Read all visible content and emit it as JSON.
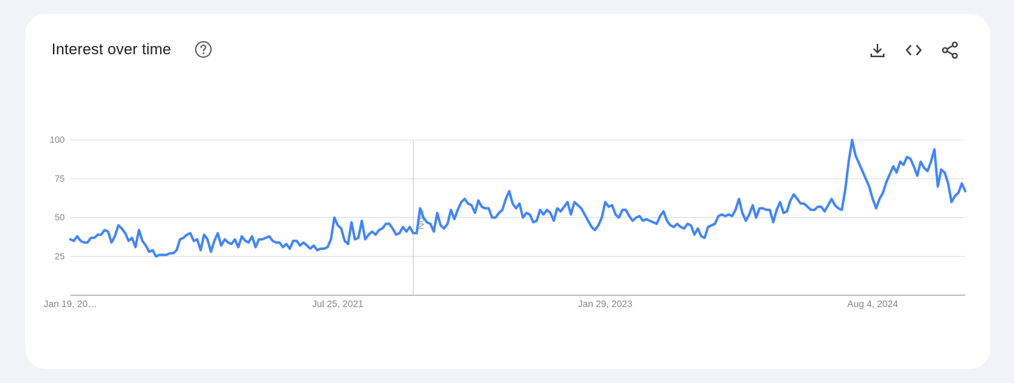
{
  "header": {
    "title": "Interest over time",
    "help_icon": "help-circle-icon",
    "actions": [
      {
        "name": "download-button",
        "icon": "download-icon",
        "label": "Download"
      },
      {
        "name": "embed-button",
        "icon": "code-icon",
        "label": "Embed"
      },
      {
        "name": "share-button",
        "icon": "share-icon",
        "label": "Share"
      }
    ]
  },
  "colors": {
    "line": "#4285f4",
    "grid": "#dadce0",
    "axis": "#80868b",
    "background": "#f1f3f8",
    "card": "#ffffff"
  },
  "chart_data": {
    "type": "line",
    "title": "Interest over time",
    "ylim": [
      0,
      100
    ],
    "yticks": [
      25,
      50,
      75,
      100
    ],
    "x_tick_labels": [
      "Jan 19, 20…",
      "Jul 25, 2021",
      "Jan 29, 2023",
      "Aug 4, 2024"
    ],
    "x_tick_positions": [
      0,
      78,
      156,
      234
    ],
    "note_label": "Note",
    "note_index": 100,
    "grid": true,
    "series": [
      {
        "values": [
          36,
          35,
          38,
          35,
          34,
          34,
          37,
          37,
          39,
          39,
          42,
          41,
          34,
          38,
          45,
          43,
          40,
          35,
          37,
          31,
          42,
          35,
          32,
          28,
          29,
          25,
          26,
          26,
          26,
          27,
          27,
          29,
          36,
          37,
          39,
          40,
          35,
          36,
          29,
          39,
          36,
          28,
          35,
          40,
          32,
          36,
          34,
          33,
          36,
          31,
          38,
          35,
          34,
          38,
          31,
          36,
          36,
          37,
          38,
          35,
          34,
          34,
          31,
          33,
          30,
          35,
          35,
          32,
          34,
          32,
          30,
          32,
          29,
          30,
          30,
          31,
          36,
          50,
          45,
          43,
          35,
          33,
          47,
          36,
          37,
          48,
          36,
          39,
          41,
          39,
          42,
          43,
          46,
          46,
          43,
          39,
          40,
          44,
          41,
          44,
          40,
          40,
          56,
          50,
          47,
          46,
          41,
          53,
          45,
          43,
          46,
          55,
          49,
          55,
          60,
          62,
          59,
          58,
          53,
          61,
          57,
          56,
          56,
          50,
          50,
          53,
          55,
          62,
          67,
          59,
          56,
          59,
          50,
          53,
          52,
          47,
          48,
          55,
          52,
          55,
          53,
          48,
          56,
          54,
          57,
          60,
          52,
          60,
          58,
          56,
          52,
          48,
          44,
          42,
          45,
          50,
          60,
          57,
          58,
          52,
          50,
          55,
          55,
          51,
          48,
          50,
          51,
          48,
          49,
          48,
          47,
          46,
          51,
          54,
          48,
          45,
          44,
          46,
          44,
          43,
          46,
          45,
          39,
          43,
          38,
          37,
          44,
          45,
          46,
          51,
          52,
          51,
          52,
          51,
          55,
          62,
          53,
          48,
          52,
          58,
          50,
          56,
          56,
          55,
          55,
          47,
          55,
          60,
          53,
          54,
          61,
          65,
          62,
          59,
          59,
          57,
          55,
          55,
          57,
          57,
          54,
          58,
          62,
          58,
          56,
          55,
          68,
          86,
          100,
          90,
          85,
          80,
          75,
          70,
          62,
          56,
          62,
          66,
          73,
          78,
          83,
          79,
          86,
          84,
          89,
          88,
          83,
          77,
          86,
          82,
          80,
          86,
          94,
          70,
          81,
          79,
          72,
          60,
          64,
          66,
          72,
          67
        ]
      }
    ]
  }
}
